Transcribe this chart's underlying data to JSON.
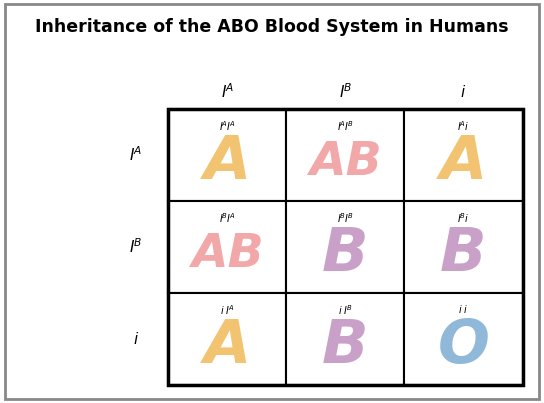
{
  "title": "Inheritance of the ABO Blood System in Humans",
  "title_bg": "#a0a8b8",
  "col_headers": [
    "$\\it{I}$$^{\\it{A}}$",
    "$\\it{I}$$^{\\it{B}}$",
    "$\\it{i}$"
  ],
  "row_headers": [
    "$\\it{I}$$^{\\it{A}}$",
    "$\\it{I}$$^{\\it{B}}$",
    "$\\it{i}$"
  ],
  "genotypes": [
    [
      "$\\it{I}$$^{\\it{A}}$$\\it{I}$$^{\\it{A}}$",
      "$\\it{I}$$^{\\it{A}}$$\\it{I}$$^{\\it{B}}$",
      "$\\it{I}$$^{\\it{A}}$$\\it{i}$"
    ],
    [
      "$\\it{I}$$^{\\it{B}}$$\\it{I}$$^{\\it{A}}$",
      "$\\it{I}$$^{\\it{B}}$$\\it{I}$$^{\\it{B}}$",
      "$\\it{I}$$^{\\it{B}}$$\\it{i}$"
    ],
    [
      "$\\it{i}$ $\\it{I}$$^{\\it{A}}$",
      "$\\it{i}$ $\\it{I}$$^{\\it{B}}$",
      "$\\it{i}$ $\\it{i}$"
    ]
  ],
  "phenotypes": [
    [
      "A",
      "AB",
      "A"
    ],
    [
      "AB",
      "B",
      "B"
    ],
    [
      "A",
      "B",
      "O"
    ]
  ],
  "pheno_colors": [
    [
      "#f2c472",
      "#f2a8a8",
      "#f2c472"
    ],
    [
      "#f2a8a8",
      "#c8a0c8",
      "#c8a0c8"
    ],
    [
      "#f2c472",
      "#c8a0c8",
      "#90b8d8"
    ]
  ],
  "outer_bg": "#ffffff",
  "figure_border": "#888888",
  "cell_bg": "#ffffff",
  "grid_color": "#000000"
}
